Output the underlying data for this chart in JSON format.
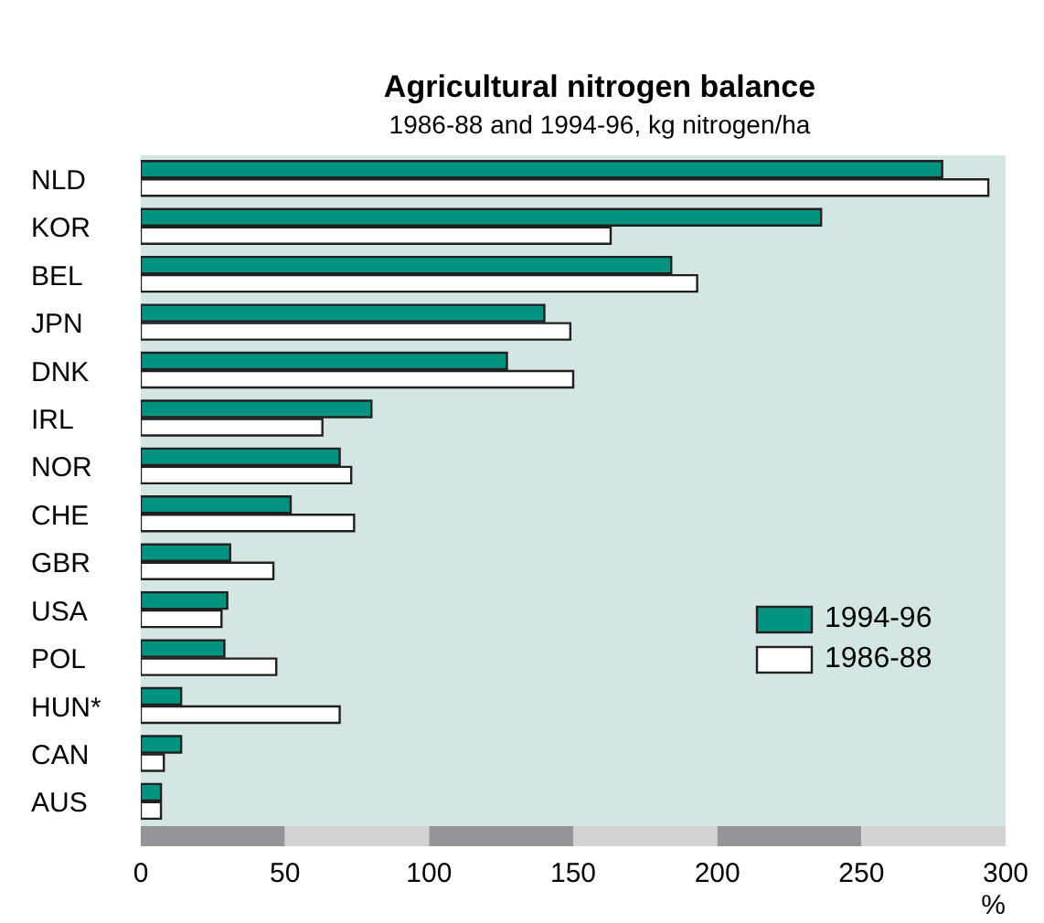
{
  "chart_data": {
    "type": "bar",
    "orientation": "horizontal",
    "title": "Agricultural nitrogen balance",
    "subtitle": "1986-88 and 1994-96, kg nitrogen/ha",
    "xlabel": "%",
    "categories": [
      "NLD",
      "KOR",
      "BEL",
      "JPN",
      "DNK",
      "IRL",
      "NOR",
      "CHE",
      "GBR",
      "USA",
      "POL",
      "HUN*",
      "CAN",
      "AUS"
    ],
    "series": [
      {
        "name": "1994-96",
        "color": "#009480",
        "values": [
          278,
          236,
          184,
          140,
          127,
          80,
          69,
          52,
          31,
          30,
          29,
          14,
          14,
          7
        ]
      },
      {
        "name": "1986-88",
        "color": "#ffffff",
        "values": [
          294,
          163,
          193,
          149,
          150,
          63,
          73,
          74,
          46,
          28,
          47,
          69,
          8,
          7
        ]
      }
    ],
    "xlim": [
      0,
      300
    ],
    "xticks": [
      0,
      50,
      100,
      150,
      200,
      250,
      300
    ],
    "grid": false,
    "legend": "right"
  }
}
